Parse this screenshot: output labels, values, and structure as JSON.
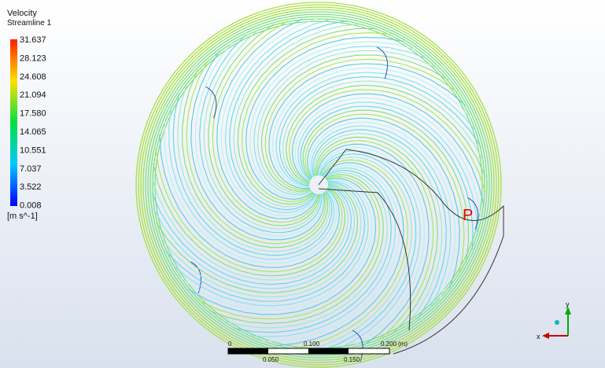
{
  "legend": {
    "title": "Velocity",
    "subtitle": "Streamline 1",
    "levels": [
      "31.637",
      "28.123",
      "24.608",
      "21.094",
      "17.580",
      "14.065",
      "10.551",
      "7.037",
      "3.522",
      "0.008"
    ],
    "unit": "[m s^-1]"
  },
  "annotation": "P",
  "scale_bar": {
    "top_labels": [
      "0",
      "0.100",
      "0.200",
      "(m)"
    ],
    "bottom_labels": [
      "0.050",
      "0.150"
    ]
  },
  "axes": {
    "y": "y",
    "x": "x"
  }
}
